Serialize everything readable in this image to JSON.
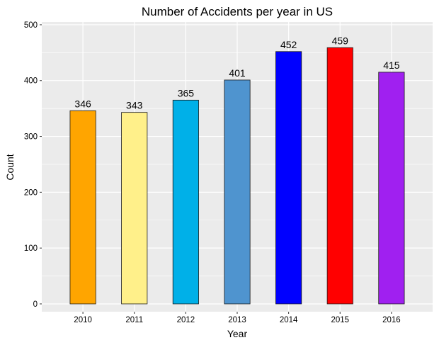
{
  "chart_data": {
    "type": "bar",
    "title": "Number of Accidents per year in US",
    "xlabel": "Year",
    "ylabel": "Count",
    "categories": [
      "2010",
      "2011",
      "2012",
      "2013",
      "2014",
      "2015",
      "2016"
    ],
    "values": [
      346,
      343,
      365,
      401,
      452,
      459,
      415
    ],
    "value_labels": [
      "346",
      "343",
      "365",
      "401",
      "452",
      "459",
      "415"
    ],
    "colors": [
      "#FFA500",
      "#FFF08A",
      "#00B0E8",
      "#4F94CF",
      "#0000FF",
      "#FF0000",
      "#A020F0"
    ],
    "yticks": [
      0,
      100,
      200,
      300,
      400,
      500
    ],
    "ylim": [
      -14,
      505
    ],
    "grid": true,
    "panel_background": "#EBEBEB",
    "grid_color": "#FFFFFF"
  }
}
